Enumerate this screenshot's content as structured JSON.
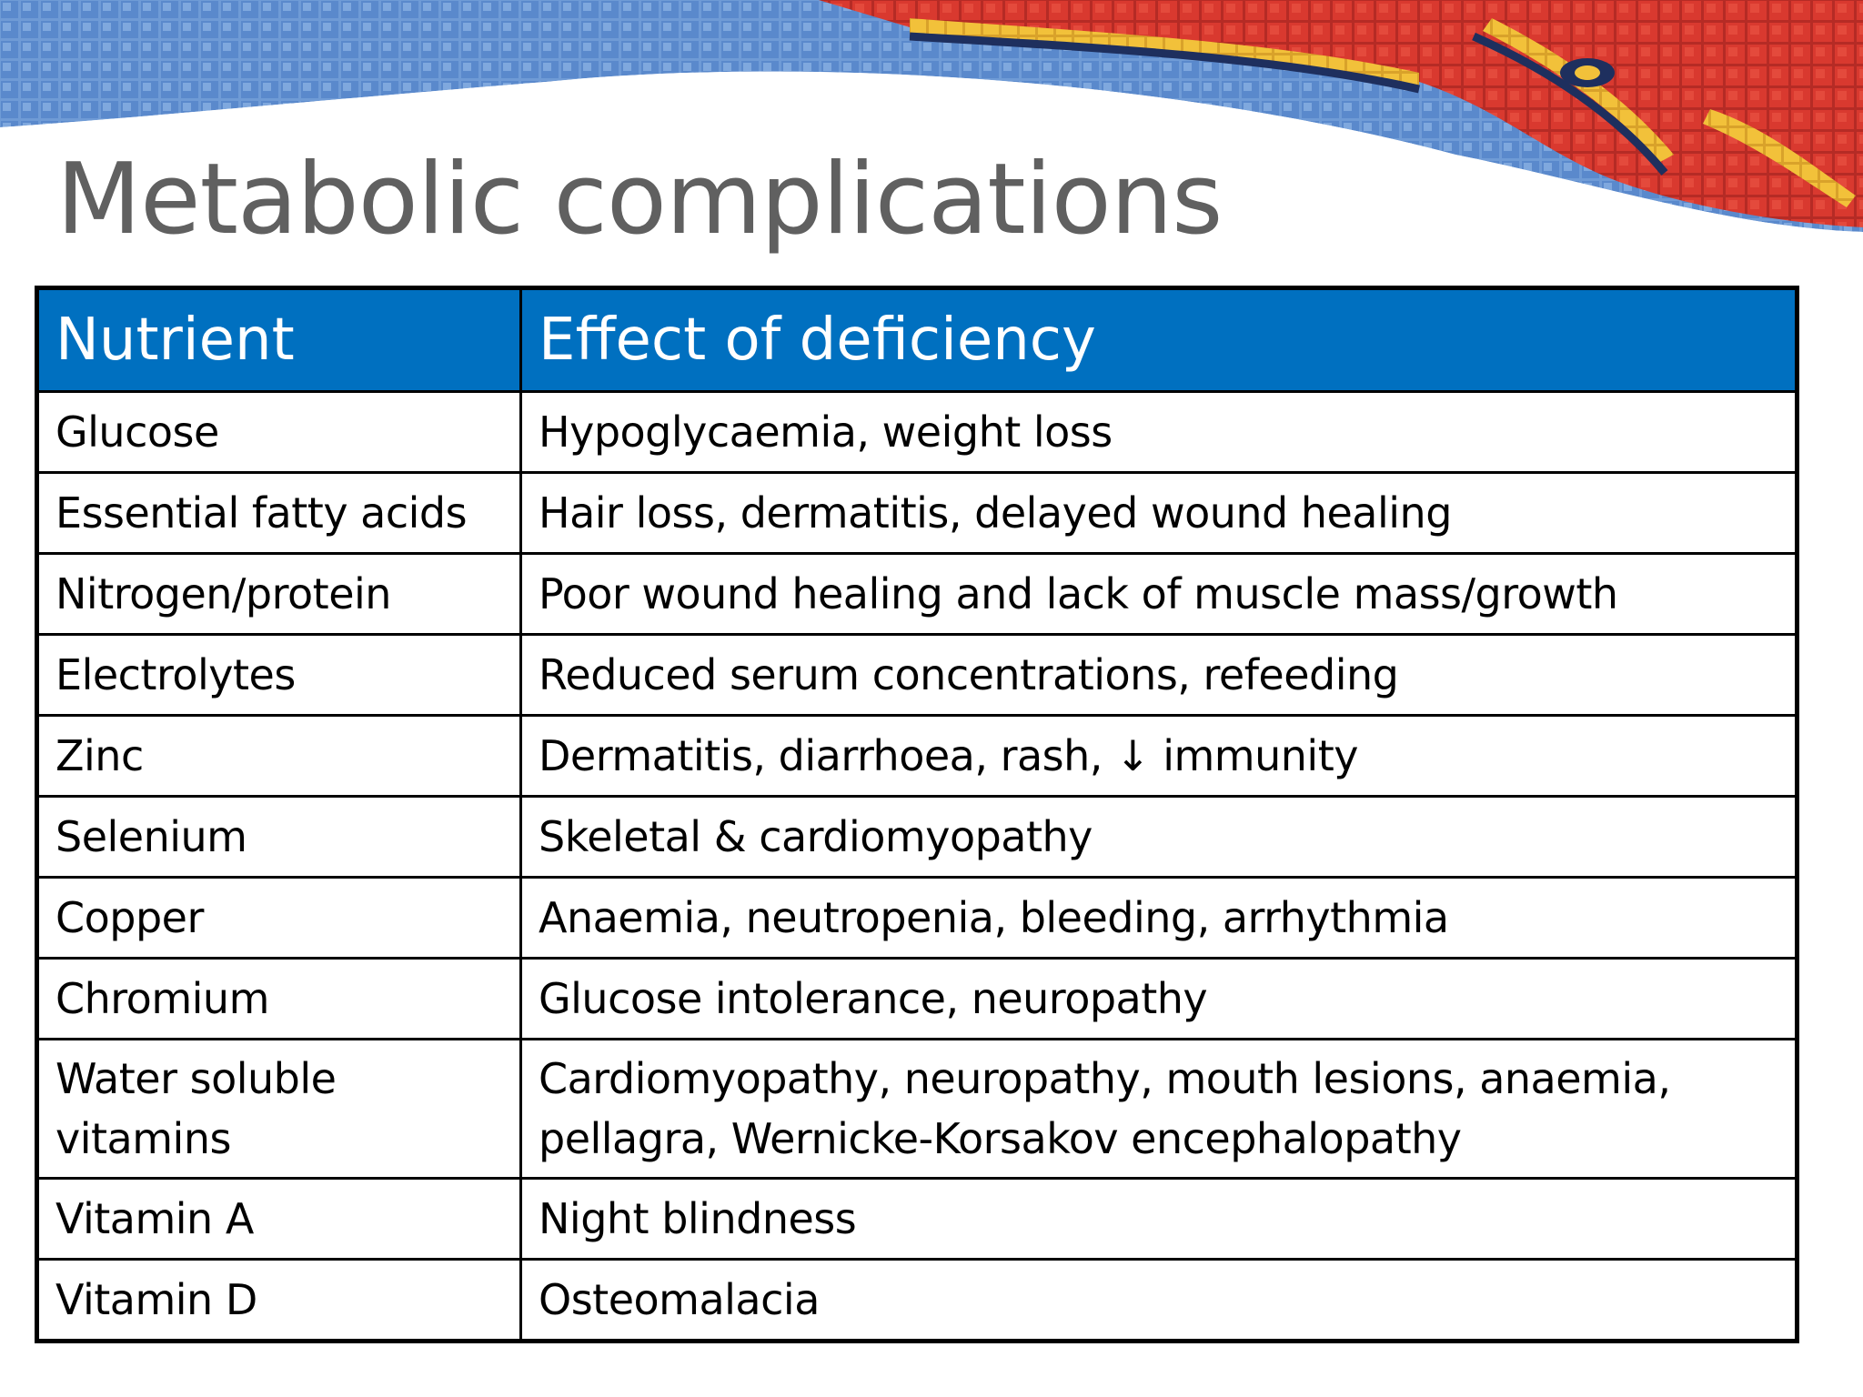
{
  "slide": {
    "title": "Metabolic complications"
  },
  "banner": {
    "description_icon": "mosaic-banner-graphic",
    "colors": {
      "blue": "#5b8fd0",
      "red": "#d93a2f",
      "yellow": "#f2c13a",
      "navy": "#1e2f5e"
    }
  },
  "table": {
    "header_color": "#0070c0",
    "columns": [
      "Nutrient",
      "Effect of deficiency"
    ],
    "rows": [
      {
        "nutrient": "Glucose",
        "effect": "Hypoglycaemia, weight loss"
      },
      {
        "nutrient": "Essential fatty acids",
        "effect": "Hair loss, dermatitis, delayed wound healing"
      },
      {
        "nutrient": "Nitrogen/protein",
        "effect": "Poor wound healing and lack of muscle mass/growth"
      },
      {
        "nutrient": "Electrolytes",
        "effect": "Reduced serum concentrations, refeeding"
      },
      {
        "nutrient": "Zinc",
        "effect": "Dermatitis, diarrhoea, rash, ↓ immunity"
      },
      {
        "nutrient": "Selenium",
        "effect": "Skeletal & cardiomyopathy"
      },
      {
        "nutrient": "Copper",
        "effect": "Anaemia, neutropenia, bleeding, arrhythmia"
      },
      {
        "nutrient": "Chromium",
        "effect": "Glucose intolerance, neuropathy"
      },
      {
        "nutrient": "Water soluble vitamins",
        "effect": "Cardiomyopathy, neuropathy, mouth lesions, anaemia, pellagra, Wernicke-Korsakov encephalopathy"
      },
      {
        "nutrient": "Vitamin A",
        "effect": "Night blindness"
      },
      {
        "nutrient": "Vitamin D",
        "effect": "Osteomalacia"
      }
    ]
  }
}
